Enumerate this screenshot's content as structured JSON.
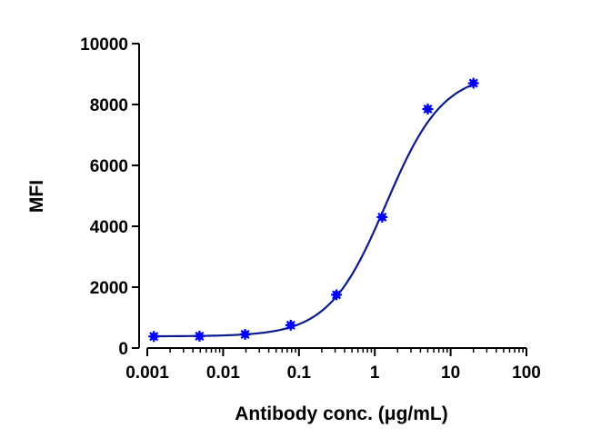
{
  "chart_data": {
    "type": "scatter",
    "xlabel": "Antibody conc. (μg/mL)",
    "ylabel": "MFI",
    "x_scale": "log",
    "xlim": [
      0.001,
      100
    ],
    "ylim": [
      0,
      10000
    ],
    "x_ticks": [
      0.001,
      0.01,
      0.1,
      1,
      10,
      100
    ],
    "x_tick_labels": [
      "0.001",
      "0.01",
      "0.1",
      "1",
      "10",
      "100"
    ],
    "y_ticks": [
      0,
      2000,
      4000,
      6000,
      8000,
      10000
    ],
    "y_tick_labels": [
      "0",
      "2000",
      "4000",
      "6000",
      "8000",
      "10000"
    ],
    "series": [
      {
        "x": [
          0.00122,
          0.00488,
          0.0195,
          0.078,
          0.3125,
          1.25,
          5,
          20
        ],
        "y": [
          380,
          390,
          450,
          750,
          1750,
          4300,
          7850,
          8700
        ]
      }
    ],
    "fit_curve": "sigmoidal",
    "color": "#0000ff",
    "curve_color": "#0a1a8c",
    "grid": false,
    "legend": "none"
  }
}
